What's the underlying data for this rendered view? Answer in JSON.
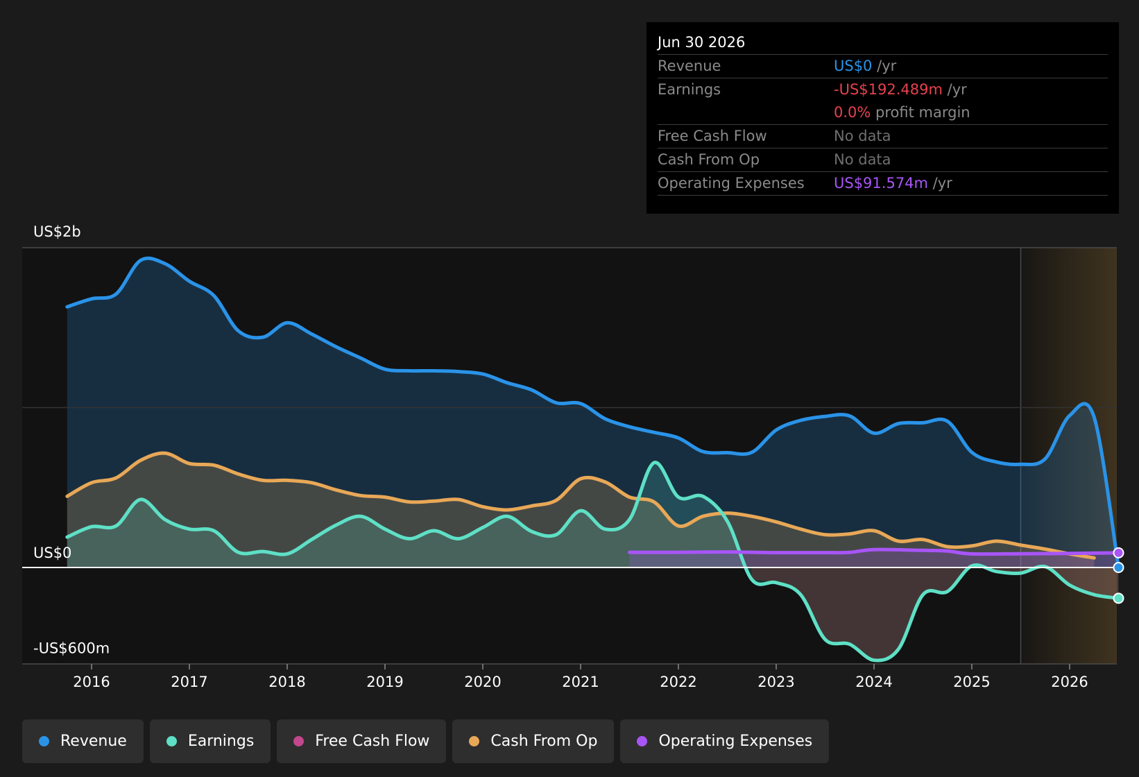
{
  "tooltip": {
    "date": "Jun 30 2026",
    "rows": [
      {
        "label": "Revenue",
        "value": "US$0",
        "unit": " /yr",
        "color": "#2a93e8"
      },
      {
        "label": "Earnings",
        "value": "-US$192.489m",
        "unit": " /yr",
        "color": "#e8414d"
      },
      {
        "label": "",
        "value": "0.0%",
        "unit": " profit margin",
        "color": "#e8414d"
      },
      {
        "label": "Free Cash Flow",
        "value": "No data",
        "unit": "",
        "color": "#6f6f6f"
      },
      {
        "label": "Cash From Op",
        "value": "No data",
        "unit": "",
        "color": "#6f6f6f"
      },
      {
        "label": "Operating Expenses",
        "value": "US$91.574m",
        "unit": " /yr",
        "color": "#a855f7"
      }
    ]
  },
  "legend": [
    {
      "label": "Revenue",
      "color": "#2a93e8"
    },
    {
      "label": "Earnings",
      "color": "#5ee0c6"
    },
    {
      "label": "Free Cash Flow",
      "color": "#c2478b"
    },
    {
      "label": "Cash From Op",
      "color": "#e8a857"
    },
    {
      "label": "Operating Expenses",
      "color": "#a855f7"
    }
  ],
  "chart_data": {
    "type": "area",
    "y_tick_labels": [
      {
        "value": 2000,
        "label": "US$2b"
      },
      {
        "value": 0,
        "label": "US$0"
      },
      {
        "value": -600,
        "label": "-US$600m"
      }
    ],
    "ylim": [
      -600,
      2000
    ],
    "xlim": [
      2015.25,
      2026.5
    ],
    "x_ticks": [
      2016,
      2017,
      2018,
      2019,
      2020,
      2021,
      2022,
      2023,
      2024,
      2025,
      2026
    ],
    "forecast_start": 2025.5,
    "series": [
      {
        "name": "Revenue",
        "color": "#2a93e8",
        "points": [
          [
            2015.75,
            1630
          ],
          [
            2016.0,
            1680
          ],
          [
            2016.25,
            1710
          ],
          [
            2016.5,
            1920
          ],
          [
            2016.75,
            1900
          ],
          [
            2017.0,
            1790
          ],
          [
            2017.25,
            1700
          ],
          [
            2017.5,
            1480
          ],
          [
            2017.75,
            1440
          ],
          [
            2018.0,
            1530
          ],
          [
            2018.25,
            1460
          ],
          [
            2018.5,
            1380
          ],
          [
            2018.75,
            1310
          ],
          [
            2019.0,
            1240
          ],
          [
            2019.25,
            1230
          ],
          [
            2019.5,
            1230
          ],
          [
            2019.75,
            1225
          ],
          [
            2020.0,
            1210
          ],
          [
            2020.25,
            1155
          ],
          [
            2020.5,
            1110
          ],
          [
            2020.75,
            1030
          ],
          [
            2021.0,
            1025
          ],
          [
            2021.25,
            930
          ],
          [
            2021.5,
            880
          ],
          [
            2021.75,
            845
          ],
          [
            2022.0,
            810
          ],
          [
            2022.25,
            725
          ],
          [
            2022.5,
            718
          ],
          [
            2022.75,
            720
          ],
          [
            2023.0,
            860
          ],
          [
            2023.25,
            920
          ],
          [
            2023.5,
            945
          ],
          [
            2023.75,
            948
          ],
          [
            2024.0,
            840
          ],
          [
            2024.25,
            900
          ],
          [
            2024.5,
            905
          ],
          [
            2024.75,
            915
          ],
          [
            2025.0,
            720
          ],
          [
            2025.25,
            660
          ],
          [
            2025.5,
            645
          ],
          [
            2025.75,
            680
          ],
          [
            2026.0,
            950
          ],
          [
            2026.25,
            940
          ],
          [
            2026.5,
            0
          ]
        ]
      },
      {
        "name": "Earnings",
        "color": "#5ee0c6",
        "points": [
          [
            2015.75,
            190
          ],
          [
            2016.0,
            255
          ],
          [
            2016.25,
            260
          ],
          [
            2016.5,
            425
          ],
          [
            2016.75,
            300
          ],
          [
            2017.0,
            240
          ],
          [
            2017.25,
            230
          ],
          [
            2017.5,
            95
          ],
          [
            2017.75,
            100
          ],
          [
            2018.0,
            85
          ],
          [
            2018.25,
            175
          ],
          [
            2018.5,
            265
          ],
          [
            2018.75,
            320
          ],
          [
            2019.0,
            240
          ],
          [
            2019.25,
            180
          ],
          [
            2019.5,
            230
          ],
          [
            2019.75,
            180
          ],
          [
            2020.0,
            250
          ],
          [
            2020.25,
            320
          ],
          [
            2020.5,
            225
          ],
          [
            2020.75,
            205
          ],
          [
            2021.0,
            355
          ],
          [
            2021.25,
            240
          ],
          [
            2021.5,
            300
          ],
          [
            2021.75,
            655
          ],
          [
            2022.0,
            440
          ],
          [
            2022.25,
            445
          ],
          [
            2022.5,
            290
          ],
          [
            2022.75,
            -75
          ],
          [
            2023.0,
            -95
          ],
          [
            2023.25,
            -170
          ],
          [
            2023.5,
            -450
          ],
          [
            2023.75,
            -480
          ],
          [
            2024.0,
            -580
          ],
          [
            2024.25,
            -510
          ],
          [
            2024.5,
            -170
          ],
          [
            2024.75,
            -150
          ],
          [
            2025.0,
            10
          ],
          [
            2025.25,
            -25
          ],
          [
            2025.5,
            -35
          ],
          [
            2025.75,
            5
          ],
          [
            2026.0,
            -110
          ],
          [
            2026.25,
            -170
          ],
          [
            2026.5,
            -192.489
          ]
        ]
      },
      {
        "name": "Cash From Op",
        "color": "#e8a857",
        "points": [
          [
            2015.75,
            445
          ],
          [
            2016.0,
            530
          ],
          [
            2016.25,
            560
          ],
          [
            2016.5,
            670
          ],
          [
            2016.75,
            715
          ],
          [
            2017.0,
            650
          ],
          [
            2017.25,
            640
          ],
          [
            2017.5,
            585
          ],
          [
            2017.75,
            545
          ],
          [
            2018.0,
            545
          ],
          [
            2018.25,
            530
          ],
          [
            2018.5,
            485
          ],
          [
            2018.75,
            450
          ],
          [
            2019.0,
            440
          ],
          [
            2019.25,
            410
          ],
          [
            2019.5,
            415
          ],
          [
            2019.75,
            425
          ],
          [
            2020.0,
            380
          ],
          [
            2020.25,
            360
          ],
          [
            2020.5,
            385
          ],
          [
            2020.75,
            420
          ],
          [
            2021.0,
            555
          ],
          [
            2021.25,
            535
          ],
          [
            2021.5,
            440
          ],
          [
            2021.75,
            410
          ],
          [
            2022.0,
            260
          ],
          [
            2022.25,
            320
          ],
          [
            2022.5,
            340
          ],
          [
            2022.75,
            320
          ],
          [
            2023.0,
            285
          ],
          [
            2023.25,
            240
          ],
          [
            2023.5,
            205
          ],
          [
            2023.75,
            210
          ],
          [
            2024.0,
            230
          ],
          [
            2024.25,
            165
          ],
          [
            2024.5,
            175
          ],
          [
            2024.75,
            130
          ],
          [
            2025.0,
            135
          ],
          [
            2025.25,
            165
          ],
          [
            2025.5,
            140
          ],
          [
            2025.75,
            115
          ],
          [
            2026.0,
            85
          ],
          [
            2026.25,
            60
          ]
        ]
      },
      {
        "name": "Operating Expenses",
        "color": "#a855f7",
        "points": [
          [
            2021.5,
            95
          ],
          [
            2022.0,
            95
          ],
          [
            2022.5,
            97
          ],
          [
            2023.0,
            93
          ],
          [
            2023.5,
            93
          ],
          [
            2023.75,
            94
          ],
          [
            2024.0,
            112
          ],
          [
            2024.5,
            107
          ],
          [
            2024.75,
            103
          ],
          [
            2025.0,
            85
          ],
          [
            2025.5,
            86
          ],
          [
            2026.0,
            88
          ],
          [
            2026.5,
            91.574
          ]
        ]
      }
    ]
  }
}
